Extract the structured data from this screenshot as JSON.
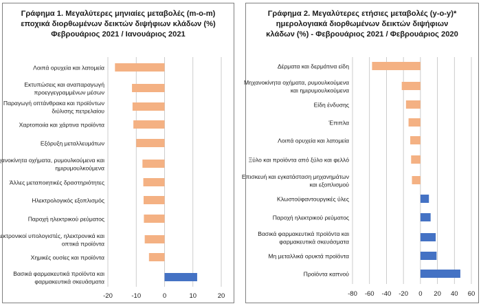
{
  "chart_data": [
    {
      "type": "bar",
      "orientation": "horizontal",
      "title_lines": [
        "Γράφημα 1. Μεγαλύτερες μηνιαίες μεταβολές (m-o-m)",
        "εποχικά διορθωμένων δεικτών διψήφιων κλάδων (%)",
        "Φεβρουάριος 2021 / Ιανουάριος 2021"
      ],
      "categories": [
        [
          "Λοιπά ορυχεία και λατομεία"
        ],
        [
          "Εκτυπώσεις και αναπαραγωγή",
          "προεγγεγραμμένων μέσων"
        ],
        [
          "Παραγωγή οπτάνθρακα και προϊόντων",
          "διύλισης πετρελαίου"
        ],
        [
          "Χαρτοποιία και χάρτινα προϊόντα"
        ],
        [
          "Εξόρυξη μεταλλευμάτων"
        ],
        [
          "Μηχανοκίνητα οχήματα, ρυμουλκούμενα και",
          "ημιρυμουλκούμενα"
        ],
        [
          "Άλλες μεταποιητικές δραστηριότητες"
        ],
        [
          "Ηλεκτρολογικός εξοπλισμός"
        ],
        [
          "Παροχή ηλεκτρικού ρεύματος"
        ],
        [
          "Ηλεκτρονικοί υπολογιστές, ηλεκτρονικά και",
          "οπτικά προϊόντα"
        ],
        [
          "Χημικές ουσίες και προϊόντα"
        ],
        [
          "Βασικά φαρμακευτικά προϊόντα και",
          "φαρμακευτικά σκευάσματα"
        ]
      ],
      "values": [
        -17.5,
        -11.5,
        -11.3,
        -11.0,
        -10.0,
        -7.8,
        -7.5,
        -7.4,
        -7.3,
        -7.0,
        -5.5,
        11.5
      ],
      "xlim": [
        -20,
        20
      ],
      "ticks": [
        "-20",
        "-10",
        "0",
        "10",
        "20"
      ],
      "grid": true,
      "colors": {
        "negative": "#f4b183",
        "positive": "#4472c4"
      }
    },
    {
      "type": "bar",
      "orientation": "horizontal",
      "title_lines": [
        "Γράφημα 2. Μεγαλύτερες ετήσιες μεταβολές (y-o-y)*",
        "ημερολογιακά διορθωμένων δεικτών διψήφιων",
        "κλάδων (%) - Φεβρουάριος 2021 / Φεβρουάριος 2020"
      ],
      "categories": [
        [
          "Δέρματα και δερμάτινα είδη"
        ],
        [
          "Μηχανοκίνητα οχήματα, ρυμουλκούμενα",
          "και ημιρυμουλκούμενα"
        ],
        [
          "Είδη ένδυσης"
        ],
        [
          "Έπιπλα"
        ],
        [
          "Λοιπά ορυχεία και λατομεία"
        ],
        [
          "Ξύλο και προϊόντα από ξύλο και φελλό"
        ],
        [
          "Επισκευή και εγκατάσταση μηχανημάτων",
          "και εξοπλισμού"
        ],
        [
          "Κλωστοϋφαντουργικές ύλες"
        ],
        [
          "Παροχή ηλεκτρικού ρεύματος"
        ],
        [
          "Βασικά φαρμακευτικά προϊόντα και",
          "φαρμακευτικά σκευάσματα"
        ],
        [
          "Μη μεταλλικά ορυκτά προϊόντα"
        ],
        [
          "Προϊόντα καπνού"
        ]
      ],
      "values": [
        -57,
        -22,
        -17,
        -14,
        -12,
        -11,
        -10,
        10,
        12,
        18,
        19,
        47
      ],
      "xlim": [
        -80,
        60
      ],
      "ticks": [
        "-80",
        "-60",
        "-40",
        "-20",
        "0",
        "20",
        "40",
        "60"
      ],
      "grid": true,
      "colors": {
        "negative": "#f4b183",
        "positive": "#4472c4"
      }
    }
  ]
}
